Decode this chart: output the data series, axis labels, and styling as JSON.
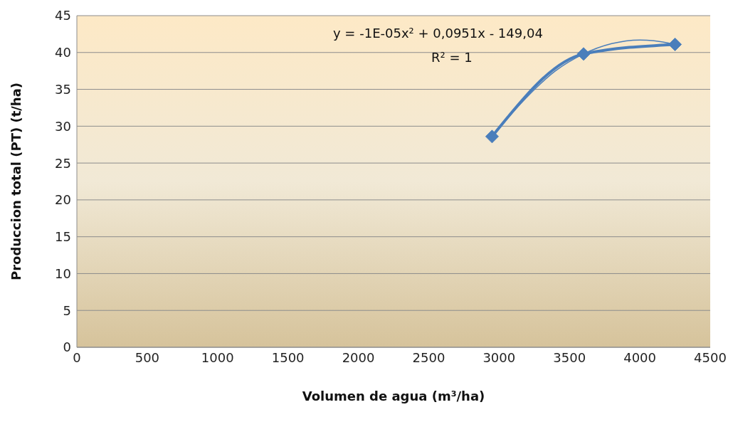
{
  "chart_data": {
    "type": "line",
    "xlabel": "Volumen de agua (m³/ha)",
    "ylabel": "Produccion total (PT) (t/ha)",
    "xlim": [
      0,
      4500
    ],
    "xticks": [
      0,
      500,
      1000,
      1500,
      2000,
      2500,
      3000,
      3500,
      4000,
      4500
    ],
    "ylim": [
      0,
      45
    ],
    "yticks": [
      0,
      5,
      10,
      15,
      20,
      25,
      30,
      35,
      40,
      45
    ],
    "grid": "y",
    "marker": "diamond",
    "line_style": "solid",
    "series": [
      {
        "color": "#4a7ebb",
        "x": [
          2950,
          3600,
          4250
        ],
        "values": [
          28.6,
          39.8,
          41.1
        ]
      },
      {
        "type": "line",
        "color": "#4a7ebb",
        "marker": "none",
        "x": [
          2950,
          3200,
          3400,
          3600,
          3800,
          4000,
          4100,
          4250
        ],
        "values": [
          28.6,
          34.0,
          37.5,
          39.8,
          41.2,
          41.7,
          41.6,
          41.1
        ]
      }
    ],
    "annotations": [
      "y = -1E-05x² + 0,0951x - 149,04",
      "R² = 1"
    ]
  }
}
